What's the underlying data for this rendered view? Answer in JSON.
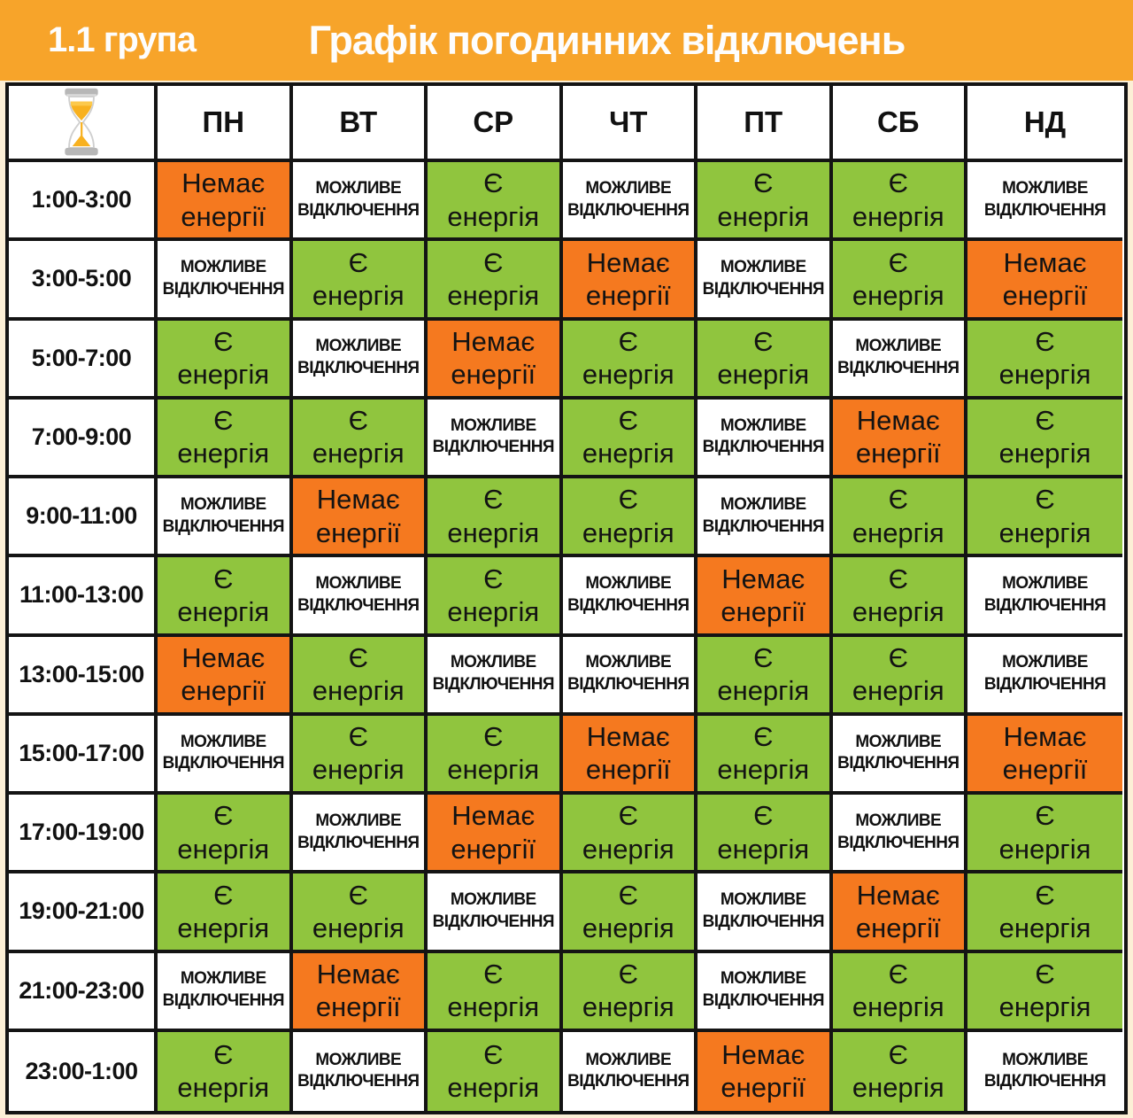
{
  "banner": {
    "group": "1.1 група",
    "title": "Графік погодинних відключень"
  },
  "colors": {
    "banner_orange": "#F7A42A",
    "no_energy_orange": "#F5791F",
    "has_energy_green": "#90C53E",
    "possible_outage_white": "#FFFFFF",
    "border_black": "#141414",
    "page_margin_cream": "#FCEFD6",
    "banner_text_white": "#FDFDFD"
  },
  "states": {
    "yes": {
      "lines": [
        "Є",
        "енергія"
      ]
    },
    "no": {
      "lines": [
        "Немає",
        "енергії"
      ]
    },
    "maybe": {
      "lines": [
        "МОЖЛИВЕ",
        "ВІДКЛЮЧЕННЯ"
      ]
    }
  },
  "table": {
    "corner_icon": "hourglass-icon",
    "day_headers": [
      "ПН",
      "ВТ",
      "СР",
      "ЧТ",
      "ПТ",
      "СБ",
      "НД"
    ],
    "day_keys": [
      "mon",
      "tue",
      "wed",
      "thu",
      "fri",
      "sat",
      "sun"
    ],
    "rows": [
      {
        "time": "1:00-3:00",
        "cells": [
          "no",
          "maybe",
          "yes",
          "maybe",
          "yes",
          "yes",
          "maybe"
        ]
      },
      {
        "time": "3:00-5:00",
        "cells": [
          "maybe",
          "yes",
          "yes",
          "no",
          "maybe",
          "yes",
          "no"
        ]
      },
      {
        "time": "5:00-7:00",
        "cells": [
          "yes",
          "maybe",
          "no",
          "yes",
          "yes",
          "maybe",
          "yes"
        ]
      },
      {
        "time": "7:00-9:00",
        "cells": [
          "yes",
          "yes",
          "maybe",
          "yes",
          "maybe",
          "no",
          "yes"
        ]
      },
      {
        "time": "9:00-11:00",
        "cells": [
          "maybe",
          "no",
          "yes",
          "yes",
          "maybe",
          "yes",
          "yes"
        ]
      },
      {
        "time": "11:00-13:00",
        "cells": [
          "yes",
          "maybe",
          "yes",
          "maybe",
          "no",
          "yes",
          "maybe"
        ]
      },
      {
        "time": "13:00-15:00",
        "cells": [
          "no",
          "yes",
          "maybe",
          "maybe",
          "yes",
          "yes",
          "maybe"
        ]
      },
      {
        "time": "15:00-17:00",
        "cells": [
          "maybe",
          "yes",
          "yes",
          "no",
          "yes",
          "maybe",
          "no"
        ]
      },
      {
        "time": "17:00-19:00",
        "cells": [
          "yes",
          "maybe",
          "no",
          "yes",
          "yes",
          "maybe",
          "yes"
        ]
      },
      {
        "time": "19:00-21:00",
        "cells": [
          "yes",
          "yes",
          "maybe",
          "yes",
          "maybe",
          "no",
          "yes"
        ]
      },
      {
        "time": "21:00-23:00",
        "cells": [
          "maybe",
          "no",
          "yes",
          "yes",
          "maybe",
          "yes",
          "yes"
        ]
      },
      {
        "time": "23:00-1:00",
        "cells": [
          "yes",
          "maybe",
          "yes",
          "maybe",
          "no",
          "yes",
          "maybe"
        ]
      }
    ]
  }
}
